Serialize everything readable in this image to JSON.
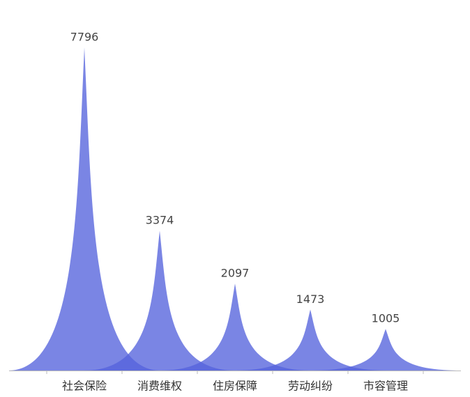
{
  "chart_data": {
    "type": "pictorial-bar",
    "categories": [
      "社会保险",
      "消费维权",
      "住房保障",
      "劳动纠纷",
      "市容管理"
    ],
    "values": [
      7796,
      3374,
      2097,
      1473,
      1005
    ],
    "color": "#5463dc",
    "ylim": [
      0,
      8000
    ]
  }
}
